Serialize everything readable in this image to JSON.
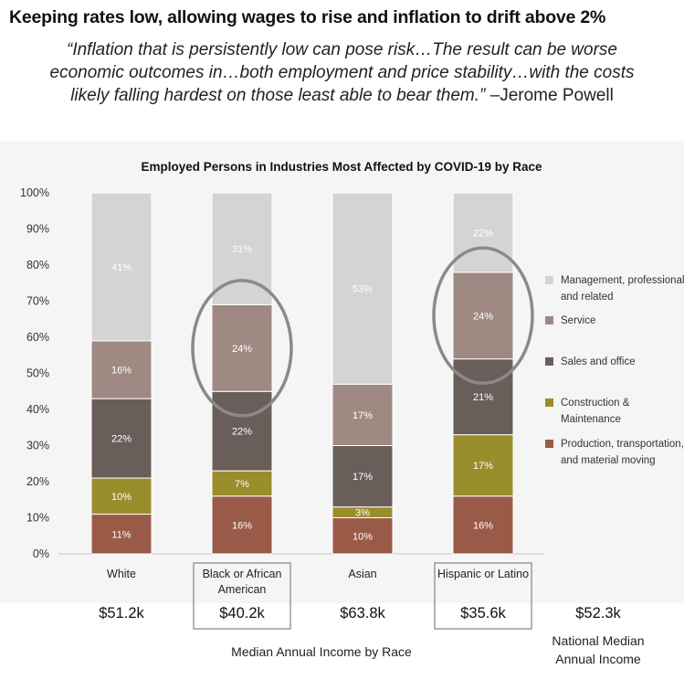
{
  "headline": "Keeping rates low, allowing wages to rise and inflation to drift above 2%",
  "quote": {
    "line1": "“Inflation that is persistently low can pose risk…The result can be worse",
    "line2": "economic outcomes in…both employment and price stability…with the costs",
    "line3": "likely falling hardest on those least able to bear them.”",
    "attribution": "–Jerome Powell"
  },
  "chart_data": {
    "type": "bar",
    "stacked": true,
    "title": "Employed Persons in Industries Most Affected by COVID-19 by Race",
    "ylim": [
      0,
      100
    ],
    "yticks": [
      "0%",
      "10%",
      "20%",
      "30%",
      "40%",
      "50%",
      "60%",
      "70%",
      "80%",
      "90%",
      "100%"
    ],
    "categories": [
      {
        "lines": [
          "White"
        ],
        "boxed": false
      },
      {
        "lines": [
          "Black or African",
          "American"
        ],
        "boxed": true
      },
      {
        "lines": [
          "Asian"
        ],
        "boxed": false
      },
      {
        "lines": [
          "Hispanic or Latino"
        ],
        "boxed": true
      }
    ],
    "series": [
      {
        "name": "Production, transportation, and material moving",
        "legend_lines": [
          "Production, transportation,",
          "and material moving"
        ],
        "color": "#9a5a48",
        "label_color": "#ffffff",
        "values": [
          11,
          16,
          10,
          16
        ],
        "labels": [
          "11%",
          "16%",
          "10%",
          "16%"
        ]
      },
      {
        "name": "Construction & Maintenance",
        "legend_lines": [
          "Construction &",
          "Maintenance"
        ],
        "color": "#9a8e2c",
        "label_color": "#ffffff",
        "values": [
          10,
          7,
          3,
          17
        ],
        "labels": [
          "10%",
          "7%",
          "3%",
          "17%"
        ]
      },
      {
        "name": "Sales and office",
        "legend_lines": [
          "Sales and office"
        ],
        "color": "#6a5e5a",
        "label_color": "#ffffff",
        "values": [
          22,
          22,
          17,
          21
        ],
        "labels": [
          "22%",
          "22%",
          "17%",
          "21%"
        ]
      },
      {
        "name": "Service",
        "legend_lines": [
          "Service"
        ],
        "color": "#9e8a82",
        "label_color": "#ffffff",
        "values": [
          16,
          24,
          17,
          24
        ],
        "labels": [
          "16%",
          "24%",
          "17%",
          "24%"
        ]
      },
      {
        "name": "Management, professional, and related",
        "legend_lines": [
          "Management, professional,",
          "and related"
        ],
        "color": "#d4d4d4",
        "label_color": "#ffffff",
        "values": [
          41,
          31,
          53,
          22
        ],
        "labels": [
          "41%",
          "31%",
          "53%",
          "22%"
        ]
      }
    ],
    "highlight": {
      "series": "Service",
      "categories": [
        "Black or African American",
        "Hispanic or Latino"
      ]
    }
  },
  "incomes": {
    "values": [
      "$51.2k",
      "$40.2k",
      "$63.8k",
      "$35.6k"
    ],
    "national_value": "$52.3k",
    "national_label_line1": "National Median",
    "national_label_line2": "Annual Income",
    "caption": "Median Annual Income by Race"
  }
}
